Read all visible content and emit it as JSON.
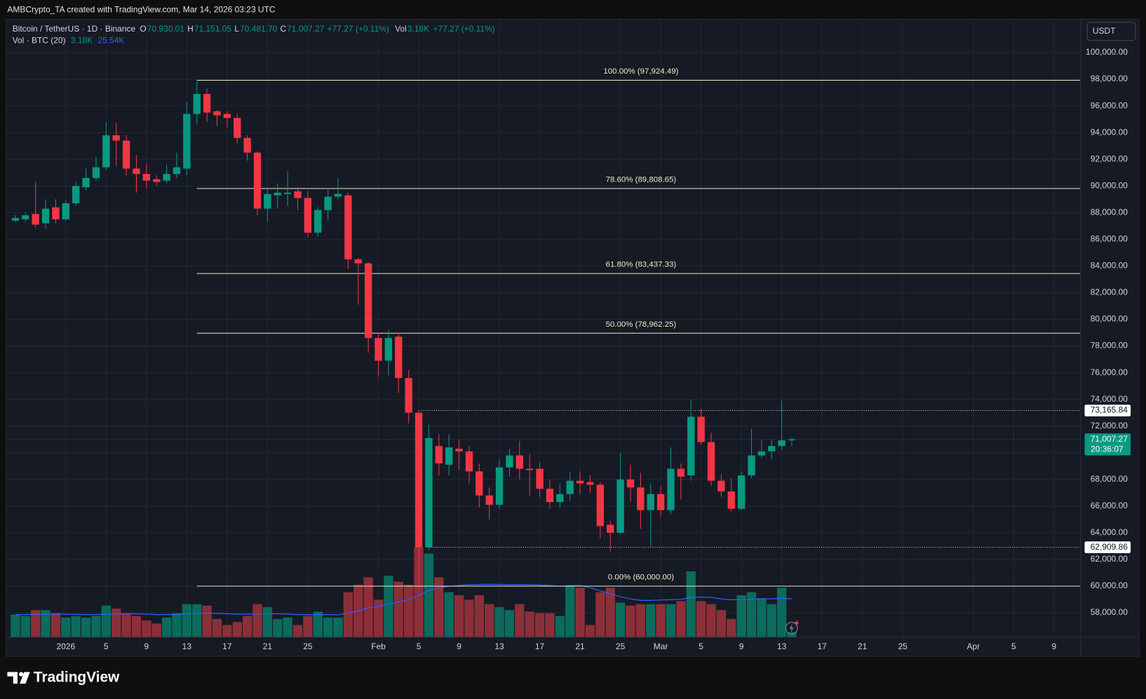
{
  "header": {
    "attribution": "AMBCrypto_TA created with TradingView.com, Mar 14, 2026 03:23 UTC",
    "logo": "TradingView",
    "currency_button": "USDT"
  },
  "chart_data": {
    "type": "candlestick",
    "legend": {
      "symbol": "Bitcoin / TetherUS · 1D · Binance",
      "ohlc": [
        {
          "key": "O",
          "text": "70,930.01"
        },
        {
          "key": "H",
          "text": "71,151.05"
        },
        {
          "key": "L",
          "text": "70,481.70"
        },
        {
          "key": "C",
          "text": "71,007.27"
        }
      ],
      "change": "+77.27 (+0.11%)",
      "volume_key": "Vol",
      "volume_text": "3.18K",
      "volume_change": "+77.27 (+0.11%)",
      "indicator": "Vol · BTC (20)",
      "indicator_values": [
        "3.18K",
        "25.54K"
      ]
    },
    "x": [
      -5,
      -4,
      -3,
      -2,
      -1,
      0,
      1,
      2,
      3,
      4,
      5,
      6,
      7,
      8,
      9,
      10,
      11,
      12,
      13,
      14,
      15,
      16,
      17,
      18,
      19,
      20,
      21,
      22,
      23,
      24,
      25,
      26,
      27,
      28,
      29,
      30,
      31,
      32,
      33,
      34,
      35,
      36,
      37,
      38,
      39,
      40,
      41,
      42,
      43,
      44,
      45,
      46,
      47,
      48,
      49,
      50,
      51,
      52,
      53,
      54,
      55,
      56,
      57,
      58,
      59,
      60,
      61,
      62,
      63,
      64,
      65,
      66,
      67,
      68,
      69,
      70,
      71,
      72
    ],
    "open": [
      87400,
      87500,
      87900,
      87200,
      88400,
      87500,
      88700,
      89900,
      90600,
      91400,
      93800,
      93400,
      91300,
      90900,
      90500,
      90400,
      90900,
      91300,
      95400,
      96900,
      95600,
      95400,
      95100,
      93600,
      92500,
      88300,
      89300,
      89400,
      89600,
      89100,
      86500,
      88200,
      89200,
      89300,
      84500,
      84200,
      78600,
      76900,
      78700,
      75600,
      73000,
      62900,
      70500,
      69100,
      70300,
      70100,
      68600,
      66800,
      66100,
      68900,
      69800,
      68800,
      68800,
      67300,
      66300,
      66900,
      67900,
      67800,
      67600,
      64600,
      64000,
      68000,
      67400,
      65700,
      66900,
      65700,
      68800,
      68300,
      72700,
      70800,
      67900,
      67100,
      65800,
      68300,
      69800,
      70100,
      70500,
      70930.01
    ],
    "high": [
      87800,
      88000,
      90300,
      89000,
      89000,
      88900,
      90300,
      91300,
      92200,
      94800,
      94700,
      93800,
      92300,
      91700,
      90800,
      91600,
      92500,
      96300,
      97900,
      97300,
      95700,
      95600,
      95400,
      93800,
      92600,
      89900,
      90200,
      91100,
      89800,
      89600,
      88400,
      89700,
      90600,
      89500,
      84600,
      84300,
      79000,
      79200,
      79000,
      76200,
      73200,
      72100,
      71400,
      71400,
      71000,
      70500,
      69200,
      67400,
      69500,
      70300,
      70900,
      69900,
      69300,
      68000,
      67700,
      68600,
      68600,
      68300,
      67800,
      64900,
      70000,
      69100,
      68500,
      67700,
      67500,
      70400,
      69200,
      74000,
      73300,
      71500,
      68400,
      68100,
      68600,
      71800,
      71000,
      71000,
      73900,
      71151.05
    ],
    "low": [
      87300,
      87300,
      86900,
      86800,
      87200,
      87400,
      88500,
      89700,
      90400,
      91200,
      91500,
      90800,
      89500,
      89800,
      90000,
      90200,
      90600,
      90800,
      94600,
      94800,
      94500,
      94400,
      93200,
      91900,
      87800,
      87300,
      88300,
      88500,
      88200,
      86200,
      86200,
      87400,
      89000,
      83800,
      81100,
      77500,
      75700,
      75800,
      74500,
      72200,
      60000,
      62700,
      68300,
      68300,
      68700,
      67700,
      65900,
      65000,
      65800,
      68200,
      68000,
      66800,
      66700,
      65800,
      65900,
      66400,
      66900,
      67000,
      63600,
      62600,
      63900,
      66300,
      64300,
      62900,
      65200,
      65400,
      66500,
      67900,
      70600,
      67500,
      66700,
      65600,
      65700,
      68100,
      69600,
      69500,
      70200,
      70481.7
    ],
    "close": [
      87600,
      87800,
      87100,
      88300,
      87500,
      88700,
      90000,
      90600,
      91400,
      93800,
      93400,
      91300,
      90900,
      90400,
      90300,
      90900,
      91400,
      95400,
      96900,
      95500,
      95300,
      95100,
      93600,
      92500,
      88300,
      89400,
      89500,
      89500,
      89100,
      86500,
      88200,
      89200,
      89400,
      84500,
      84200,
      78600,
      76900,
      78600,
      75600,
      73000,
      62900,
      71100,
      69200,
      70400,
      70100,
      68600,
      66800,
      66100,
      68900,
      69800,
      68800,
      68700,
      67300,
      66300,
      66900,
      67900,
      67700,
      67600,
      64500,
      64000,
      68000,
      67400,
      65700,
      66900,
      65700,
      68800,
      68200,
      72700,
      70800,
      67900,
      67100,
      65800,
      68300,
      69800,
      70100,
      70500,
      70930,
      71007.27
    ],
    "up_color": "#089981",
    "down_color": "#f23645",
    "volume": {
      "values": [
        15,
        14,
        18,
        18,
        16,
        13,
        14,
        13,
        14,
        21,
        19,
        16,
        14,
        11,
        9,
        13,
        16,
        22,
        22,
        21,
        12,
        8,
        10,
        14,
        22,
        20,
        12,
        13,
        8,
        14,
        17,
        13,
        13,
        30,
        35,
        40,
        25,
        41,
        37,
        35,
        60,
        56,
        40,
        30,
        28,
        25,
        28,
        22,
        20,
        18,
        22,
        17,
        16,
        16,
        14,
        34,
        33,
        8,
        30,
        33,
        23,
        21,
        22,
        22,
        22,
        22,
        24,
        44,
        24,
        22,
        18,
        12,
        28,
        30,
        26,
        22,
        33,
        3.18
      ],
      "ma": [
        15,
        15,
        15.2,
        15.3,
        15.3,
        15.2,
        15.1,
        15,
        15,
        15.2,
        15.4,
        15.5,
        15.5,
        15.3,
        15,
        15,
        15.1,
        15.4,
        15.8,
        16,
        15.8,
        15.5,
        15.3,
        15.2,
        15.4,
        15.6,
        15.5,
        15.3,
        15,
        14.9,
        15,
        15,
        14.8,
        16,
        17.5,
        19.5,
        20.5,
        22,
        23.5,
        25,
        28,
        31,
        33,
        34,
        34.5,
        35,
        35.2,
        35.3,
        35.2,
        35,
        35.2,
        35,
        34.8,
        34.5,
        34,
        34.5,
        34.5,
        33,
        31,
        29,
        27,
        25.5,
        24.5,
        24.5,
        24.8,
        25,
        25.2,
        26.5,
        26.8,
        26.5,
        25.5,
        25,
        25,
        25.3,
        25.5,
        25.6,
        26,
        25.54
      ],
      "up_color": "#0b6b5c",
      "down_color": "#8c2f39",
      "ma_color": "#2962ff"
    },
    "xlim": [
      -5.8,
      100.6
    ],
    "xticks": [
      {
        "value": 0,
        "label": "2026"
      },
      {
        "value": 4,
        "label": "5"
      },
      {
        "value": 8,
        "label": "9"
      },
      {
        "value": 12,
        "label": "13"
      },
      {
        "value": 16,
        "label": "17"
      },
      {
        "value": 20,
        "label": "21"
      },
      {
        "value": 24,
        "label": "25"
      },
      {
        "value": 31,
        "label": "Feb"
      },
      {
        "value": 35,
        "label": "5"
      },
      {
        "value": 39,
        "label": "9"
      },
      {
        "value": 43,
        "label": "13"
      },
      {
        "value": 47,
        "label": "17"
      },
      {
        "value": 51,
        "label": "21"
      },
      {
        "value": 55,
        "label": "25"
      },
      {
        "value": 59,
        "label": "Mar"
      },
      {
        "value": 63,
        "label": "5"
      },
      {
        "value": 67,
        "label": "9"
      },
      {
        "value": 71,
        "label": "13"
      },
      {
        "value": 75,
        "label": "17"
      },
      {
        "value": 79,
        "label": "21"
      },
      {
        "value": 83,
        "label": "25"
      },
      {
        "value": 90,
        "label": "Apr"
      },
      {
        "value": 94,
        "label": "5"
      },
      {
        "value": 98,
        "label": "9"
      }
    ],
    "ylim": [
      56192,
      102464
    ],
    "yticks": [
      {
        "value": 58000,
        "label": "58,000.00"
      },
      {
        "value": 60000,
        "label": "60,000.00"
      },
      {
        "value": 62000,
        "label": "62,000.00"
      },
      {
        "value": 64000,
        "label": "64,000.00"
      },
      {
        "value": 66000,
        "label": "66,000.00"
      },
      {
        "value": 68000,
        "label": "68,000.00"
      },
      {
        "value": 70000,
        "label": "70,000.00"
      },
      {
        "value": 72000,
        "label": "72,000.00"
      },
      {
        "value": 74000,
        "label": "74,000.00"
      },
      {
        "value": 76000,
        "label": "76,000.00"
      },
      {
        "value": 78000,
        "label": "78,000.00"
      },
      {
        "value": 80000,
        "label": "80,000.00"
      },
      {
        "value": 82000,
        "label": "82,000.00"
      },
      {
        "value": 84000,
        "label": "84,000.00"
      },
      {
        "value": 86000,
        "label": "86,000.00"
      },
      {
        "value": 88000,
        "label": "88,000.00"
      },
      {
        "value": 90000,
        "label": "90,000.00"
      },
      {
        "value": 92000,
        "label": "92,000.00"
      },
      {
        "value": 94000,
        "label": "94,000.00"
      },
      {
        "value": 96000,
        "label": "96,000.00"
      },
      {
        "value": 98000,
        "label": "98,000.00"
      },
      {
        "value": 100000,
        "label": "100,000.00"
      }
    ],
    "grid": true,
    "fib_color": "#f0ebc4",
    "fib_levels": [
      {
        "value": 97924.49,
        "label": "100.00% (97,924.49)"
      },
      {
        "value": 89808.65,
        "label": "78.60% (89,808.65)"
      },
      {
        "value": 83437.33,
        "label": "61.80% (83,437.33)"
      },
      {
        "value": 78962.25,
        "label": "50.00% (78,962.25)"
      },
      {
        "value": 60000,
        "label": "0.00% (60,000.00)"
      }
    ],
    "price_lines": [
      {
        "value": 73165.84,
        "label": "73,165.84"
      },
      {
        "value": 62909.86,
        "label": "62,909.86"
      }
    ],
    "last_price": {
      "value": 71007.27,
      "label": "71,007.27",
      "countdown": "20:36:07"
    }
  }
}
